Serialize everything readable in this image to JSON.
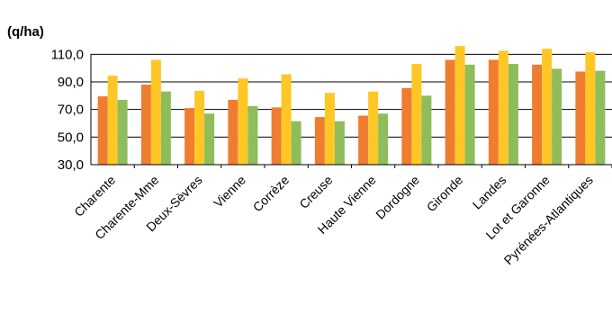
{
  "chart_data": {
    "type": "bar",
    "unit_label": "(q/ha)",
    "categories": [
      "Charente",
      "Charente-Mme",
      "Deux-Sèvres",
      "Vienne",
      "Corrèze",
      "Creuse",
      "Haute Vienne",
      "Dordogne",
      "Gironde",
      "Landes",
      "Lot et Garonne",
      "Pyrénées-Atlantiques"
    ],
    "series": [
      {
        "values": [
          79.5,
          88,
          71,
          77,
          71.5,
          64.5,
          65.5,
          85.5,
          106,
          106,
          102.5,
          97.5
        ],
        "color": "#ee7d31"
      },
      {
        "values": [
          94.5,
          106,
          83.5,
          92.5,
          95.5,
          82,
          83,
          103,
          116,
          112.5,
          114,
          111.5
        ],
        "color": "#ffc726"
      },
      {
        "values": [
          77,
          83,
          67,
          72.5,
          61.5,
          61.5,
          67,
          80,
          102.5,
          103,
          99.5,
          98
        ],
        "color": "#8fbd5b"
      }
    ],
    "ylim": [
      30,
      120
    ],
    "yticks": [
      "30,0",
      "50,0",
      "70,0",
      "90,0",
      "110,0"
    ],
    "grid": true,
    "legend": "none"
  }
}
